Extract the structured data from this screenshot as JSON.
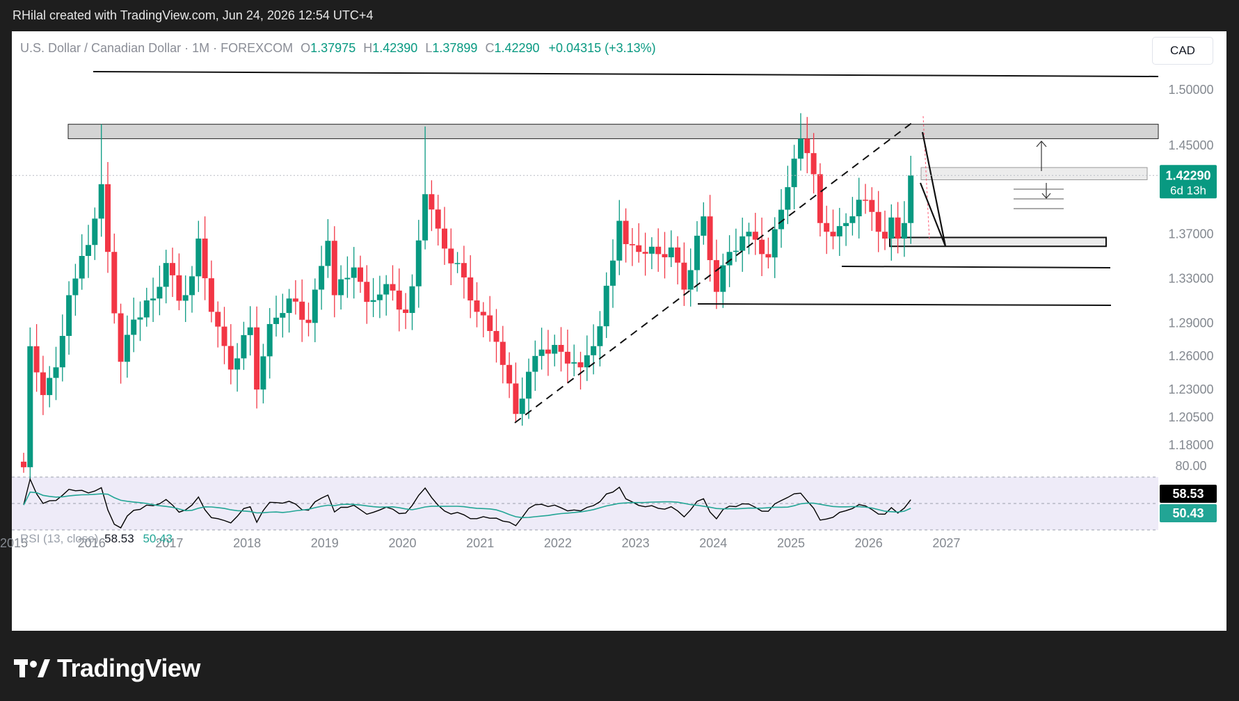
{
  "caption": "RHilal created with TradingView.com, Jun 24, 2026 12:54 UTC+4",
  "brand": "TradingView",
  "currency_button": "CAD",
  "legend": {
    "symbol": "U.S. Dollar / Canadian Dollar · 1M · FOREXCOM",
    "o_label": "O",
    "o": "1.37975",
    "h_label": "H",
    "h": "1.42390",
    "l_label": "L",
    "l": "1.37899",
    "c_label": "C",
    "c": "1.42290",
    "change": "+0.04315 (+3.13%)"
  },
  "price_badge": {
    "price": "1.42290",
    "countdown": "6d 13h"
  },
  "rsi": {
    "label": "RSI (13, close)",
    "value": "58.53",
    "ma_value": "50.43",
    "upper_level": "80.00"
  },
  "colors": {
    "up": "#089981",
    "down": "#f23645",
    "rsi_line": "#000000",
    "rsi_ma": "#22a595",
    "rsi_band": "#eeebf8"
  },
  "chart_data": {
    "type": "candlestick",
    "timeframe": "1M",
    "price_axis": {
      "ticks": [
        "1.50000",
        "1.45000",
        "1.37000",
        "1.33000",
        "1.29000",
        "1.26000",
        "1.23000",
        "1.20500",
        "1.18000"
      ]
    },
    "time_axis": {
      "ticks": [
        "2015",
        "2016",
        "2017",
        "2018",
        "2019",
        "2020",
        "2021",
        "2022",
        "2023",
        "2024",
        "2025",
        "2026",
        "2027"
      ]
    },
    "ohlc_samples": [
      {
        "t": "2015-01",
        "o": 1.16,
        "h": 1.28,
        "l": 1.155,
        "c": 1.269
      },
      {
        "t": "2016-01",
        "o": 1.4,
        "h": 1.469,
        "l": 1.38,
        "c": 1.415
      },
      {
        "t": "2016-04",
        "o": 1.3,
        "h": 1.31,
        "l": 1.246,
        "c": 1.255
      },
      {
        "t": "2017-05",
        "o": 1.345,
        "h": 1.379,
        "l": 1.33,
        "c": 1.365
      },
      {
        "t": "2017-09",
        "o": 1.265,
        "h": 1.268,
        "l": 1.206,
        "c": 1.22
      },
      {
        "t": "2018-12",
        "o": 1.33,
        "h": 1.366,
        "l": 1.315,
        "c": 1.364
      },
      {
        "t": "2020-03",
        "o": 1.342,
        "h": 1.467,
        "l": 1.33,
        "c": 1.406
      },
      {
        "t": "2021-05",
        "o": 1.23,
        "h": 1.235,
        "l": 1.2005,
        "c": 1.206
      },
      {
        "t": "2022-10",
        "o": 1.375,
        "h": 1.398,
        "l": 1.35,
        "c": 1.361
      },
      {
        "t": "2024-04",
        "o": 1.352,
        "h": 1.385,
        "l": 1.34,
        "c": 1.368
      },
      {
        "t": "2025-01",
        "o": 1.438,
        "h": 1.479,
        "l": 1.415,
        "c": 1.456
      },
      {
        "t": "2025-05",
        "o": 1.38,
        "h": 1.384,
        "l": 1.364,
        "c": 1.369
      },
      {
        "t": "2026-06",
        "o": 1.37975,
        "h": 1.4239,
        "l": 1.37899,
        "c": 1.4229
      }
    ],
    "rsi": {
      "period": 13,
      "source": "close",
      "last": 58.53,
      "ma_last": 50.43,
      "upper": 80,
      "lower": 30
    }
  }
}
